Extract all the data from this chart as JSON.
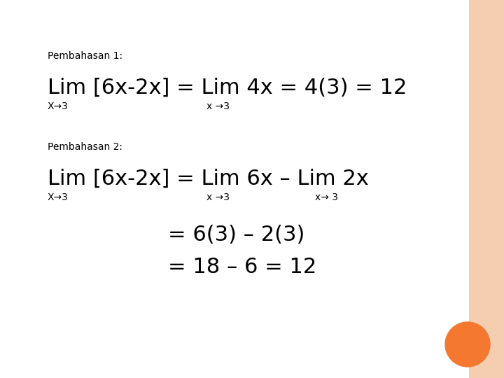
{
  "background_color": "#f5cdb0",
  "white_area_color": "#ffffff",
  "pembahasan1_label": "Pembahasan 1:",
  "pembahasan2_label": "Pembahasan 2:",
  "line1_lim_text": "Lim [6x-2x] = Lim 4x = 4(3) = 12",
  "line1_sub1": "X→3",
  "line1_sub2": "x →3",
  "line2_lim_text": "Lim [6x-2x] = Lim 6x – Lim 2x",
  "line2_sub1": "X→3",
  "line2_sub2": "x →3",
  "line2_sub3": "x→ 3",
  "line3_text": "= 6(3) – 2(3)",
  "line4_text": "= 18 – 6 = 12",
  "orange_circle_color": "#f47830",
  "label_fontsize": 10,
  "main_fontsize": 22,
  "sub_fontsize": 10,
  "result_fontsize": 22
}
